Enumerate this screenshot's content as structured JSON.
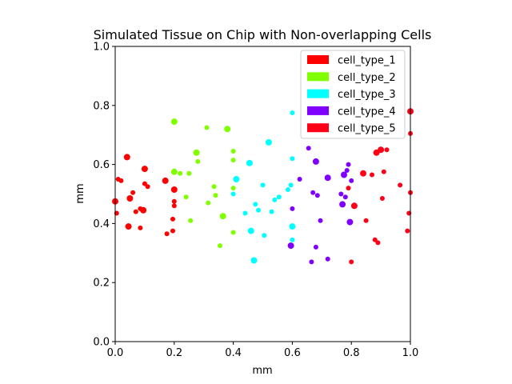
{
  "chart_data": {
    "type": "scatter",
    "title": "Simulated Tissue on Chip with Non-overlapping Cells",
    "xlabel": "mm",
    "ylabel": "mm",
    "xlim": [
      0,
      1
    ],
    "ylim": [
      0,
      1
    ],
    "xticks": [
      0.0,
      0.2,
      0.4,
      0.6,
      0.8,
      1.0
    ],
    "yticks": [
      0.0,
      0.2,
      0.4,
      0.6,
      0.8,
      1.0
    ],
    "xtick_labels": [
      "0.0",
      "0.2",
      "0.4",
      "0.6",
      "0.8",
      "1.0"
    ],
    "ytick_labels": [
      "0.0",
      "0.2",
      "0.4",
      "0.6",
      "0.8",
      "1.0"
    ],
    "legend_position": "top-right",
    "series": [
      {
        "name": "cell_type_1",
        "color": "#ff0000",
        "x": [
          0.0,
          0.005,
          0.01,
          0.02,
          0.04,
          0.045,
          0.05,
          0.06,
          0.07,
          0.085,
          0.095,
          0.1,
          0.1,
          0.11,
          0.085,
          0.17,
          0.175,
          0.195,
          0.2,
          0.2,
          0.195,
          0.2
        ],
        "y": [
          0.475,
          0.435,
          0.55,
          0.545,
          0.625,
          0.39,
          0.485,
          0.505,
          0.44,
          0.385,
          0.445,
          0.585,
          0.535,
          0.525,
          0.45,
          0.545,
          0.365,
          0.375,
          0.515,
          0.46,
          0.415,
          0.475
        ],
        "sizes": [
          4,
          3,
          3,
          3,
          4,
          4,
          4,
          3,
          3,
          3,
          4,
          4,
          3,
          3,
          3,
          4,
          3,
          3,
          4,
          3,
          3,
          3
        ]
      },
      {
        "name": "cell_type_2",
        "color": "#80ff00",
        "x": [
          0.2,
          0.2,
          0.22,
          0.24,
          0.25,
          0.255,
          0.275,
          0.28,
          0.31,
          0.315,
          0.335,
          0.34,
          0.355,
          0.365,
          0.38,
          0.4,
          0.4,
          0.4,
          0.4
        ],
        "y": [
          0.745,
          0.575,
          0.57,
          0.49,
          0.57,
          0.41,
          0.64,
          0.61,
          0.725,
          0.47,
          0.525,
          0.495,
          0.325,
          0.425,
          0.72,
          0.645,
          0.615,
          0.52,
          0.37
        ],
        "sizes": [
          4,
          4,
          3,
          3,
          3,
          3,
          4,
          3,
          3,
          3,
          3,
          3,
          3,
          4,
          4,
          3,
          3,
          3,
          3
        ]
      },
      {
        "name": "cell_type_3",
        "color": "#00ffff",
        "x": [
          0.4,
          0.41,
          0.44,
          0.455,
          0.46,
          0.47,
          0.475,
          0.485,
          0.5,
          0.505,
          0.52,
          0.53,
          0.54,
          0.555,
          0.585,
          0.595,
          0.6,
          0.6,
          0.6,
          0.6
        ],
        "y": [
          0.5,
          0.55,
          0.435,
          0.605,
          0.375,
          0.275,
          0.465,
          0.445,
          0.53,
          0.36,
          0.675,
          0.44,
          0.48,
          0.49,
          0.515,
          0.53,
          0.62,
          0.39,
          0.345,
          0.775
        ],
        "sizes": [
          3,
          4,
          3,
          4,
          4,
          4,
          3,
          3,
          3,
          3,
          4,
          3,
          3,
          3,
          3,
          3,
          3,
          4,
          3,
          3
        ]
      },
      {
        "name": "cell_type_4",
        "color": "#8000ff",
        "x": [
          0.595,
          0.6,
          0.625,
          0.655,
          0.665,
          0.67,
          0.68,
          0.68,
          0.685,
          0.695,
          0.72,
          0.72,
          0.765,
          0.77,
          0.775,
          0.78,
          0.785,
          0.79,
          0.795,
          0.8
        ],
        "y": [
          0.325,
          0.45,
          0.55,
          0.655,
          0.27,
          0.505,
          0.61,
          0.32,
          0.495,
          0.41,
          0.555,
          0.28,
          0.5,
          0.465,
          0.565,
          0.49,
          0.58,
          0.6,
          0.405,
          0.545
        ],
        "sizes": [
          4,
          3,
          3,
          3,
          3,
          3,
          4,
          3,
          3,
          3,
          4,
          3,
          3,
          4,
          4,
          3,
          3,
          3,
          4,
          3
        ]
      },
      {
        "name": "cell_type_5",
        "color": "#ff0018",
        "x": [
          0.79,
          0.8,
          0.81,
          0.84,
          0.85,
          0.87,
          0.88,
          0.885,
          0.89,
          0.9,
          0.905,
          0.91,
          0.92,
          0.965,
          0.99,
          0.995,
          1.0,
          1.0,
          1.0
        ],
        "y": [
          0.52,
          0.27,
          0.46,
          0.57,
          0.41,
          0.565,
          0.345,
          0.64,
          0.335,
          0.65,
          0.485,
          0.575,
          0.65,
          0.53,
          0.375,
          0.435,
          0.505,
          0.705,
          0.78
        ],
        "sizes": [
          3,
          3,
          4,
          4,
          3,
          3,
          3,
          4,
          3,
          4,
          3,
          3,
          3,
          3,
          3,
          3,
          3,
          3,
          4
        ]
      }
    ]
  }
}
